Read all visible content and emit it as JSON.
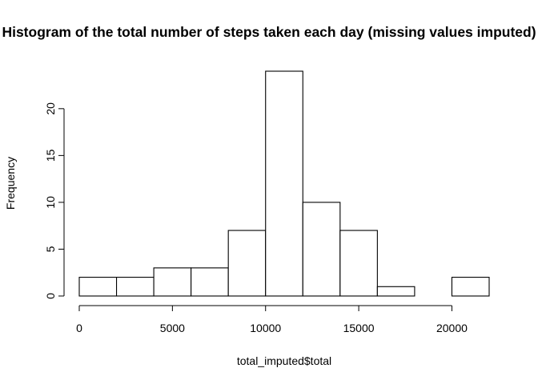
{
  "chart_data": {
    "type": "bar",
    "title": "Histogram of the total number of steps taken each day (missing values imputed)",
    "xlabel": "total_imputed$total",
    "ylabel": "Frequency",
    "bins": [
      {
        "start": 0,
        "end": 2000,
        "count": 2
      },
      {
        "start": 2000,
        "end": 4000,
        "count": 2
      },
      {
        "start": 4000,
        "end": 6000,
        "count": 3
      },
      {
        "start": 6000,
        "end": 8000,
        "count": 3
      },
      {
        "start": 8000,
        "end": 10000,
        "count": 7
      },
      {
        "start": 10000,
        "end": 12000,
        "count": 24
      },
      {
        "start": 12000,
        "end": 14000,
        "count": 10
      },
      {
        "start": 14000,
        "end": 16000,
        "count": 7
      },
      {
        "start": 16000,
        "end": 18000,
        "count": 1
      },
      {
        "start": 18000,
        "end": 20000,
        "count": 0
      },
      {
        "start": 20000,
        "end": 22000,
        "count": 2
      }
    ],
    "xlim": [
      0,
      22000
    ],
    "ylim": [
      0,
      24
    ],
    "x_ticks": [
      0,
      5000,
      10000,
      15000,
      20000
    ],
    "x_tick_labels": [
      "0",
      "5000",
      "10000",
      "15000",
      "20000"
    ],
    "y_ticks": [
      0,
      5,
      10,
      15,
      20
    ],
    "y_tick_labels": [
      "0",
      "5",
      "10",
      "15",
      "20"
    ],
    "grid": false,
    "bar_fill": "#ffffff",
    "bar_stroke": "#000000"
  }
}
